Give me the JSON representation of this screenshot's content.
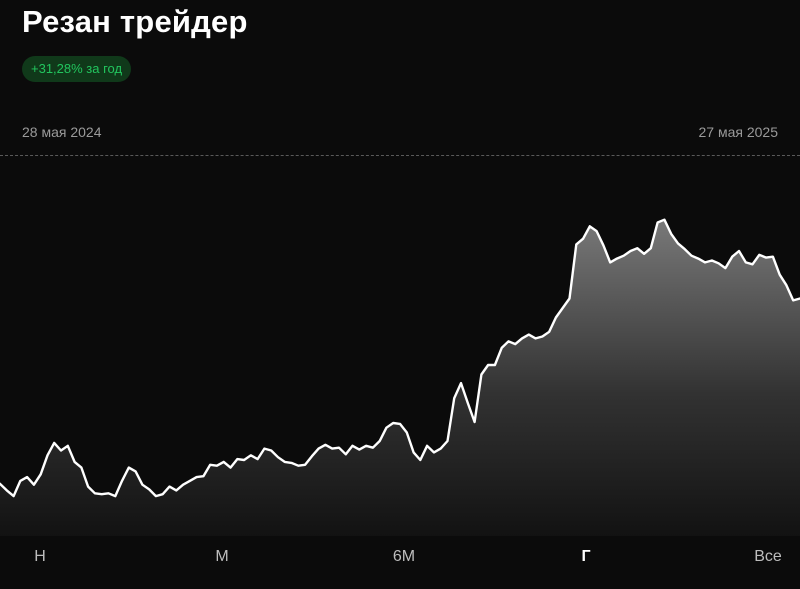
{
  "header": {
    "title": "Резан трейдер",
    "return_badge": "+31,28% за год",
    "badge_color": "#22c55e"
  },
  "date_range": {
    "start": "28 мая 2024",
    "end": "27 мая 2025"
  },
  "periods": [
    {
      "label": "Н",
      "active": false
    },
    {
      "label": "М",
      "active": false
    },
    {
      "label": "6М",
      "active": false
    },
    {
      "label": "Г",
      "active": true
    },
    {
      "label": "Все",
      "active": false
    }
  ],
  "chart_data": {
    "type": "area",
    "title": "",
    "xlabel": "",
    "ylabel": "",
    "grid": false,
    "line_color": "#ffffff",
    "x_range": [
      "28 мая 2024",
      "27 мая 2025"
    ],
    "y_range": [
      0.95,
      1.35
    ],
    "series": [
      {
        "values": [
          1.005,
          0.998,
          0.992,
          1.008,
          1.012,
          1.004,
          1.015,
          1.035,
          1.048,
          1.04,
          1.045,
          1.028,
          1.022,
          1.002,
          0.995,
          0.994,
          0.995,
          0.992,
          1.008,
          1.022,
          1.018,
          1.004,
          0.999,
          0.992,
          0.994,
          1.002,
          0.998,
          1.004,
          1.008,
          1.012,
          1.013,
          1.025,
          1.024,
          1.028,
          1.022,
          1.031,
          1.03,
          1.035,
          1.031,
          1.042,
          1.04,
          1.033,
          1.028,
          1.027,
          1.024,
          1.025,
          1.034,
          1.042,
          1.046,
          1.042,
          1.043,
          1.036,
          1.045,
          1.041,
          1.045,
          1.043,
          1.05,
          1.064,
          1.069,
          1.068,
          1.059,
          1.038,
          1.03,
          1.045,
          1.038,
          1.042,
          1.05,
          1.095,
          1.111,
          1.09,
          1.07,
          1.12,
          1.13,
          1.13,
          1.148,
          1.155,
          1.152,
          1.158,
          1.162,
          1.158,
          1.16,
          1.165,
          1.18,
          1.19,
          1.2,
          1.257,
          1.263,
          1.276,
          1.271,
          1.256,
          1.238,
          1.242,
          1.245,
          1.25,
          1.253,
          1.247,
          1.253,
          1.28,
          1.283,
          1.268,
          1.258,
          1.252,
          1.245,
          1.242,
          1.238,
          1.24,
          1.237,
          1.232,
          1.244,
          1.25,
          1.238,
          1.236,
          1.246,
          1.243,
          1.244,
          1.225,
          1.214,
          1.198,
          1.2
        ]
      }
    ]
  }
}
